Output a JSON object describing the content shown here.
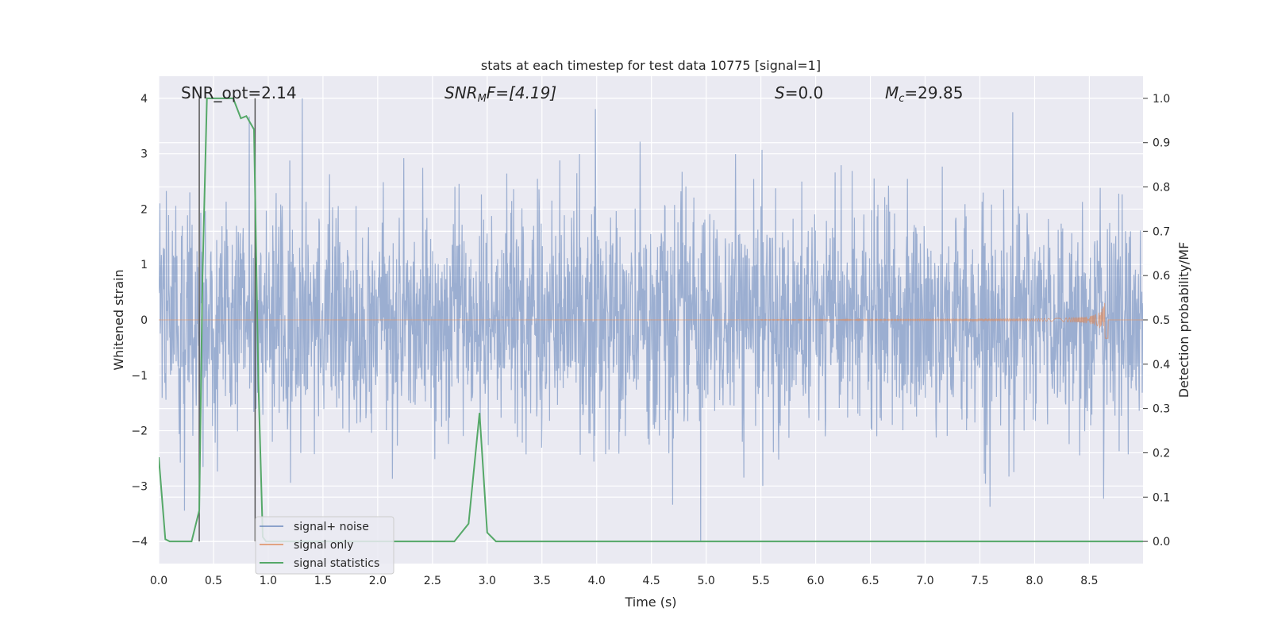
{
  "chart_data": {
    "type": "line",
    "title": "stats at each timestep for test data 10775 [signal=1]",
    "xlabel": "Time (s)",
    "ylabel": "Whitened strain",
    "ylabel_right": "Detection probability/MF",
    "xlim": [
      0.0,
      8.99
    ],
    "ylim": [
      -4.4,
      4.4
    ],
    "ylim_right": [
      -0.05,
      1.05
    ],
    "x_ticks": [
      "0.0",
      "0.5",
      "1.0",
      "1.5",
      "2.0",
      "2.5",
      "3.0",
      "3.5",
      "4.0",
      "4.5",
      "5.0",
      "5.5",
      "6.0",
      "6.5",
      "7.0",
      "7.5",
      "8.0",
      "8.5"
    ],
    "y_ticks": [
      "−4",
      "−3",
      "−2",
      "−1",
      "0",
      "1",
      "2",
      "3",
      "4"
    ],
    "y_ticks_right": [
      "0.0",
      "0.1",
      "0.2",
      "0.3",
      "0.4",
      "0.5",
      "0.6",
      "0.7",
      "0.8",
      "0.9",
      "1.0"
    ],
    "grid": true,
    "legend_position": "lower-left",
    "colors": {
      "noise": "#4c72b0",
      "signal": "#dd8452",
      "stats": "#55a868",
      "background": "#eaeaf2",
      "markers": "#555555"
    },
    "annotations": {
      "snr_opt": "SNR_opt=2.14",
      "snr_mf_prefix": "SNR",
      "snr_mf_sub": "M",
      "snr_mf_suffix": "F=[4.19]",
      "s_label": "S",
      "s_value": "=0.0",
      "mc_label": "M",
      "mc_sub": "c",
      "mc_value": "=29.85"
    },
    "series": [
      {
        "name": "signal+ noise",
        "description_values": "Gaussian whitened noise, dense, amplitude mostly within ±2.5 with peaks near 4 at t≈1.31 and −4 at t≈4.95"
      },
      {
        "name": "signal only",
        "chirp": {
          "start": 5.5,
          "peak_time": 8.65,
          "peak_amplitude": 0.5
        }
      },
      {
        "name": "signal statistics",
        "x": [
          0.0,
          0.06,
          0.1,
          0.15,
          0.3,
          0.37,
          0.4,
          0.44,
          0.5,
          0.57,
          0.63,
          0.68,
          0.75,
          0.8,
          0.87,
          0.91,
          0.95,
          0.98,
          2.0,
          2.7,
          2.83,
          2.93,
          3.0,
          3.08,
          3.5,
          5.0,
          7.0,
          8.99
        ],
        "y": [
          0.19,
          0.005,
          0.0,
          0.0,
          0.0,
          0.07,
          0.6,
          1.0,
          1.0,
          1.0,
          1.0,
          1.0,
          0.955,
          0.96,
          0.93,
          0.36,
          0.01,
          0.0,
          0.0,
          0.0,
          0.04,
          0.29,
          0.02,
          0.0,
          0.0,
          0.0,
          0.0,
          0.0
        ]
      }
    ],
    "vertical_markers": [
      0.37,
      0.88
    ]
  }
}
